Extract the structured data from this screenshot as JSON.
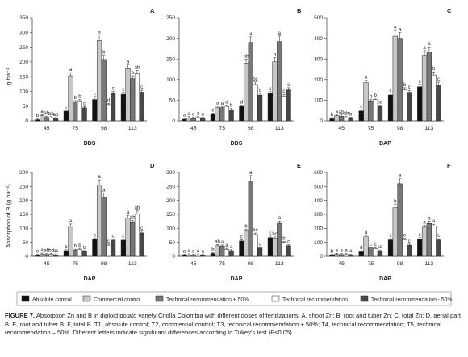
{
  "figure": {
    "caption_label": "FIGURE 7.",
    "caption_text": " Absorption Zn and B in diploid potato variety Criolla Colombia with different doses of fertilizations. A, shoot Zn; B, root and tuber Zn; C, total Zn; D, aerial part B; E, root and tuber B; F, total B. T1, absolute control; T2, commercial control; T3, technical recommendation + 50%; T4, technical recommendation; T5, technical recommendation – 50%. Different letters indicate significant differences according to Tukey’s test (P≤0.05).",
    "legend": [
      {
        "label": "Absolute control",
        "color": "#111111"
      },
      {
        "label": "Commercial control",
        "color": "#c8c8c8"
      },
      {
        "label": "Technical recommendation + 50%",
        "color": "#777777"
      },
      {
        "label": "Technical recommendation",
        "color": "#ffffff"
      },
      {
        "label": "Technical recommendation - 50%",
        "color": "#474747"
      }
    ],
    "shared_ylabels": {
      "top": "g ha⁻¹",
      "bottom": "Absorption of B (g ha⁻¹)"
    }
  },
  "chart_data": [
    {
      "id": "A",
      "type": "bar",
      "xlabel": "DDS",
      "categories": [
        "45",
        "75",
        "98",
        "113"
      ],
      "ylim": [
        0,
        350
      ],
      "yticks": [
        0,
        50,
        100,
        150,
        200,
        250,
        300,
        350
      ],
      "series": [
        {
          "name": "Absolute control",
          "values": [
            4,
            33,
            72,
            90
          ]
        },
        {
          "name": "Commercial control",
          "values": [
            17,
            153,
            272,
            177
          ]
        },
        {
          "name": "Technical recommendation + 50%",
          "values": [
            12,
            64,
            208,
            143
          ]
        },
        {
          "name": "Technical recommendation",
          "values": [
            10,
            68,
            55,
            160
          ]
        },
        {
          "name": "Technical recommendation - 50%",
          "values": [
            7,
            44,
            93,
            97
          ]
        }
      ],
      "letters": [
        [
          "b",
          "a",
          "ab",
          "ab",
          "ab"
        ],
        [
          "c",
          "a",
          "b",
          "b",
          "c"
        ],
        [
          "c",
          "a",
          "b",
          "d",
          "c"
        ],
        [
          "c",
          "a",
          "b",
          "ab",
          "c"
        ]
      ]
    },
    {
      "id": "B",
      "type": "bar",
      "xlabel": "DDS",
      "categories": [
        "45",
        "75",
        "98",
        "113"
      ],
      "ylim": [
        0,
        250
      ],
      "yticks": [
        0,
        50,
        100,
        150,
        200,
        250
      ],
      "series": [
        {
          "name": "Absolute control",
          "values": [
            4,
            16,
            35,
            66
          ]
        },
        {
          "name": "Commercial control",
          "values": [
            7,
            33,
            140,
            143
          ]
        },
        {
          "name": "Technical recommendation + 50%",
          "values": [
            6,
            32,
            190,
            192
          ]
        },
        {
          "name": "Technical recommendation",
          "values": [
            8,
            35,
            88,
            60
          ]
        },
        {
          "name": "Technical recommendation - 50%",
          "values": [
            6,
            27,
            62,
            75
          ]
        }
      ],
      "letters": [
        [
          "a",
          "a",
          "a",
          "a",
          "a"
        ],
        [
          "c",
          "a",
          "a",
          "a",
          "b"
        ],
        [
          "d",
          "ab",
          "a",
          "bc",
          "c"
        ],
        [
          "c",
          "b",
          "a",
          "c",
          "c"
        ]
      ]
    },
    {
      "id": "C",
      "type": "bar",
      "xlabel": "DAP",
      "categories": [
        "45",
        "75",
        "98",
        "113"
      ],
      "ylim": [
        0,
        500
      ],
      "yticks": [
        0,
        100,
        200,
        300,
        400,
        500
      ],
      "series": [
        {
          "name": "Absolute control",
          "values": [
            10,
            48,
            125,
            165
          ]
        },
        {
          "name": "Commercial control",
          "values": [
            25,
            185,
            410,
            318
          ]
        },
        {
          "name": "Technical recommendation + 50%",
          "values": [
            22,
            97,
            400,
            335
          ]
        },
        {
          "name": "Technical recommendation",
          "values": [
            15,
            103,
            150,
            222
          ]
        },
        {
          "name": "Technical recommendation - 50%",
          "values": [
            12,
            70,
            138,
            175
          ]
        }
      ],
      "letters": [
        [
          "b",
          "a",
          "ab",
          "ab",
          "b"
        ],
        [
          "c",
          "a",
          "b",
          "b",
          "cd"
        ],
        [
          "c",
          "a",
          "a",
          "b",
          "c"
        ],
        [
          "c",
          "a",
          "a",
          "b",
          "c"
        ]
      ]
    },
    {
      "id": "D",
      "type": "bar",
      "xlabel": "DAP",
      "categories": [
        "45",
        "75",
        "98",
        "113"
      ],
      "ylim": [
        0,
        300
      ],
      "yticks": [
        0,
        50,
        100,
        150,
        200,
        250,
        300
      ],
      "series": [
        {
          "name": "Absolute control",
          "values": [
            3,
            20,
            60,
            58
          ]
        },
        {
          "name": "Commercial control",
          "values": [
            8,
            108,
            256,
            137
          ]
        },
        {
          "name": "Technical recommendation + 50%",
          "values": [
            6,
            22,
            211,
            120
          ]
        },
        {
          "name": "Technical recommendation",
          "values": [
            7,
            25,
            40,
            152
          ]
        },
        {
          "name": "Technical recommendation - 50%",
          "values": [
            5,
            17,
            58,
            84
          ]
        }
      ],
      "letters": [
        [
          "c",
          "a",
          "ab",
          "bc",
          "bc"
        ],
        [
          "b",
          "a",
          "b",
          "b",
          "b"
        ],
        [
          "c",
          "a",
          "a",
          "c",
          "c"
        ],
        [
          "c",
          "a",
          "ab",
          "ab",
          "c"
        ]
      ]
    },
    {
      "id": "E",
      "type": "bar",
      "xlabel": "DAP",
      "categories": [
        "45",
        "75",
        "98",
        "113"
      ],
      "ylim": [
        0,
        300
      ],
      "yticks": [
        0,
        50,
        100,
        150,
        200,
        250,
        300
      ],
      "series": [
        {
          "name": "Absolute control",
          "values": [
            4,
            10,
            55,
            67
          ]
        },
        {
          "name": "Commercial control",
          "values": [
            5,
            38,
            90,
            65
          ]
        },
        {
          "name": "Technical recommendation + 50%",
          "values": [
            4,
            37,
            270,
            118
          ]
        },
        {
          "name": "Technical recommendation",
          "values": [
            5,
            25,
            78,
            50
          ]
        },
        {
          "name": "Technical recommendation - 50%",
          "values": [
            4,
            20,
            30,
            38
          ]
        }
      ],
      "letters": [
        [
          "a",
          "a",
          "a",
          "a",
          "a"
        ],
        [
          "b",
          "ab",
          "a",
          "a",
          "a"
        ],
        [
          "c",
          "b",
          "a",
          "bc",
          "c"
        ],
        [
          "c",
          "bc",
          "a",
          "b",
          "c"
        ]
      ]
    },
    {
      "id": "F",
      "type": "bar",
      "xlabel": "DAP",
      "categories": [
        "45",
        "75",
        "98",
        "113"
      ],
      "ylim": [
        0,
        600
      ],
      "yticks": [
        0,
        100,
        200,
        300,
        400,
        500,
        600
      ],
      "series": [
        {
          "name": "Absolute control",
          "values": [
            6,
            32,
            118,
            125
          ]
        },
        {
          "name": "Commercial control",
          "values": [
            14,
            140,
            348,
            208
          ]
        },
        {
          "name": "Technical recommendation + 50%",
          "values": [
            12,
            60,
            520,
            235
          ]
        },
        {
          "name": "Technical recommendation",
          "values": [
            12,
            55,
            120,
            215
          ]
        },
        {
          "name": "Technical recommendation - 50%",
          "values": [
            9,
            38,
            80,
            118
          ]
        }
      ],
      "letters": [
        [
          "b",
          "a",
          "a",
          "a",
          "a"
        ],
        [
          "d",
          "a",
          "c",
          "c",
          "cd"
        ],
        [
          "c",
          "b",
          "a",
          "c",
          "c"
        ],
        [
          "c",
          "a",
          "a",
          "a",
          "c"
        ]
      ]
    }
  ]
}
